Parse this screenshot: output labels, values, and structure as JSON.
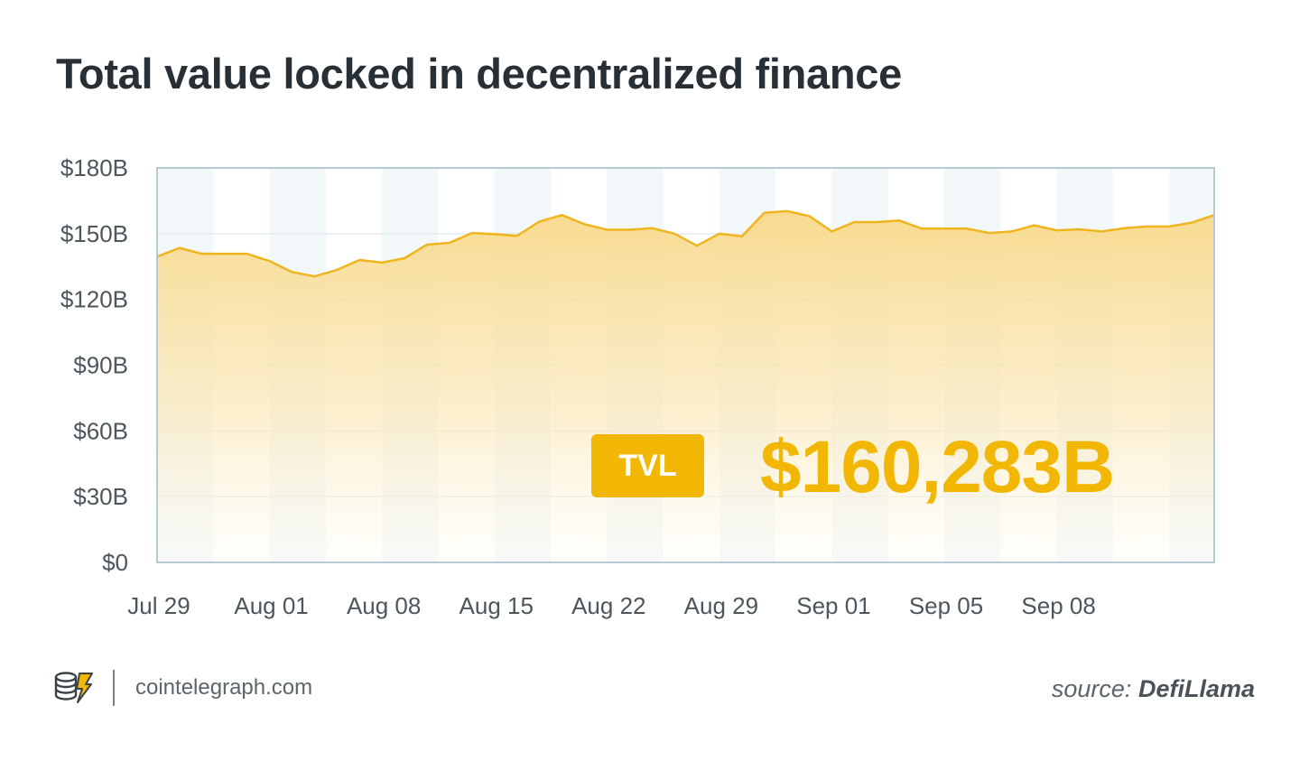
{
  "title": "Total value locked in decentralized finance",
  "badge": {
    "label": "TVL",
    "value": "$160,283B"
  },
  "footer": {
    "site": "cointelegraph.com",
    "source_prefix": "source:",
    "source_name": "DefiLlama",
    "logo_icon": "cointelegraph-coins-lightning-icon"
  },
  "colors": {
    "accent": "#f2b705",
    "line": "#f0b41e",
    "band": "#f2f7f9",
    "axis": "#b7cad3",
    "text": "#4d565c",
    "title": "#283035"
  },
  "chart_data": {
    "type": "area",
    "ylim": [
      0,
      180
    ],
    "yticks": [
      0,
      30,
      60,
      90,
      120,
      150,
      180
    ],
    "ytick_labels": [
      "$0",
      "$30B",
      "$60B",
      "$90B",
      "$120B",
      "$150B",
      "$180B"
    ],
    "xtick_labels": [
      "Jul 29",
      "Aug 01",
      "Aug 08",
      "Aug 15",
      "Aug 22",
      "Aug 29",
      "Sep 01",
      "Sep 05",
      "Sep 08"
    ],
    "xtick_positions": [
      0,
      5,
      10,
      15,
      20,
      25,
      30,
      35,
      40
    ],
    "grid": true,
    "series": [
      {
        "values": [
          139.5,
          143.5,
          140.8,
          140.8,
          140.8,
          137.5,
          132.5,
          130.5,
          133.5,
          138.0,
          136.8,
          138.8,
          145.0,
          145.8,
          150.3,
          149.8,
          149.0,
          155.5,
          158.5,
          154.3,
          151.8,
          151.8,
          152.5,
          150.0,
          144.5,
          150.0,
          148.8,
          159.5,
          160.3,
          158.0,
          151.0,
          155.3,
          155.3,
          156.0,
          152.3,
          152.3,
          152.3,
          150.3,
          151.0,
          153.8,
          151.5,
          152.0,
          151.0,
          152.5,
          153.3,
          153.3,
          155.0,
          158.5
        ]
      }
    ]
  }
}
